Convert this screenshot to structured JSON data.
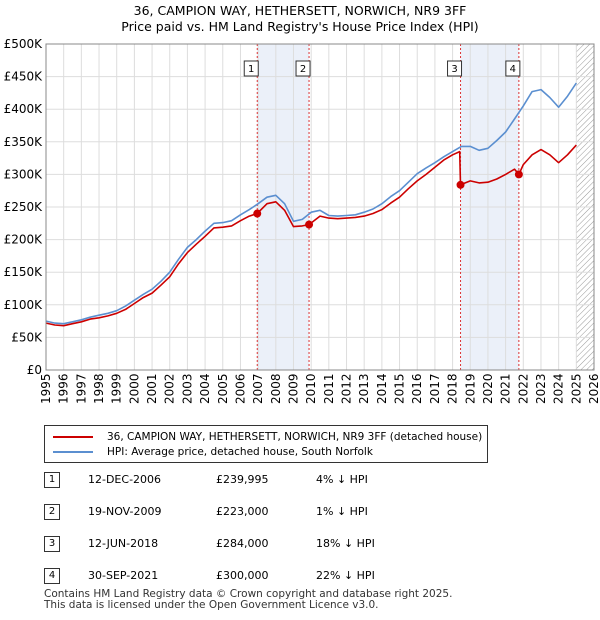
{
  "title_line1": "36, CAMPION WAY, HETHERSETT, NORWICH, NR9 3FF",
  "title_line2": "Price paid vs. HM Land Registry's House Price Index (HPI)",
  "legend": {
    "property": "36, CAMPION WAY, HETHERSETT, NORWICH, NR9 3FF (detached house)",
    "hpi": "HPI: Average price, detached house, South Norfolk"
  },
  "colors": {
    "property": "#cc0000",
    "hpi": "#5b8fd0",
    "shade": "#dde6f5",
    "grid": "#dddddd",
    "marker_line": "#dd3333"
  },
  "sales": [
    {
      "num": "1",
      "date": "12-DEC-2006",
      "price": "£239,995",
      "pct": "4% ↓ HPI"
    },
    {
      "num": "2",
      "date": "19-NOV-2009",
      "price": "£223,000",
      "pct": "1% ↓ HPI"
    },
    {
      "num": "3",
      "date": "12-JUN-2018",
      "price": "£284,000",
      "pct": "18% ↓ HPI"
    },
    {
      "num": "4",
      "date": "30-SEP-2021",
      "price": "£300,000",
      "pct": "22% ↓ HPI"
    }
  ],
  "footer_line1": "Contains HM Land Registry data © Crown copyright and database right 2025.",
  "footer_line2": "This data is licensed under the Open Government Licence v3.0.",
  "chart_data": {
    "type": "line",
    "title": "36, CAMPION WAY, HETHERSETT, NORWICH, NR9 3FF",
    "subtitle": "Price paid vs. HM Land Registry's House Price Index (HPI)",
    "xlabel": "",
    "ylabel": "",
    "xlim": [
      1995,
      2026
    ],
    "ylim": [
      0,
      500000
    ],
    "x_ticks": [
      1995,
      1996,
      1997,
      1998,
      1999,
      2000,
      2001,
      2002,
      2003,
      2004,
      2005,
      2006,
      2007,
      2008,
      2009,
      2010,
      2011,
      2012,
      2013,
      2014,
      2015,
      2016,
      2017,
      2018,
      2019,
      2020,
      2021,
      2022,
      2023,
      2024,
      2025,
      2026
    ],
    "y_ticks": [
      0,
      50000,
      100000,
      150000,
      200000,
      250000,
      300000,
      350000,
      400000,
      450000,
      500000
    ],
    "y_tick_labels": [
      "£0",
      "£50K",
      "£100K",
      "£150K",
      "£200K",
      "£250K",
      "£300K",
      "£350K",
      "£400K",
      "£450K",
      "£500K"
    ],
    "grid": true,
    "legend_position": "below",
    "shaded_periods": [
      [
        2006.95,
        2009.88
      ],
      [
        2018.45,
        2021.75
      ]
    ],
    "future_hatch_from": 2025.0,
    "series": [
      {
        "name": "HPI: Average price, detached house, South Norfolk",
        "x": [
          1995.0,
          1995.5,
          1996.0,
          1996.5,
          1997.0,
          1997.5,
          1998.0,
          1998.5,
          1999.0,
          1999.5,
          2000.0,
          2000.5,
          2001.0,
          2001.5,
          2002.0,
          2002.5,
          2003.0,
          2003.5,
          2004.0,
          2004.5,
          2005.0,
          2005.5,
          2006.0,
          2006.5,
          2007.0,
          2007.5,
          2008.0,
          2008.5,
          2009.0,
          2009.5,
          2010.0,
          2010.5,
          2011.0,
          2011.5,
          2012.0,
          2012.5,
          2013.0,
          2013.5,
          2014.0,
          2014.5,
          2015.0,
          2015.5,
          2016.0,
          2016.5,
          2017.0,
          2017.5,
          2018.0,
          2018.5,
          2019.0,
          2019.5,
          2020.0,
          2020.5,
          2021.0,
          2021.5,
          2022.0,
          2022.5,
          2023.0,
          2023.5,
          2024.0,
          2024.5,
          2025.0
        ],
        "values": [
          75000,
          72000,
          71000,
          74000,
          77000,
          81000,
          84000,
          87000,
          91000,
          98000,
          107000,
          116000,
          124000,
          136000,
          150000,
          170000,
          188000,
          200000,
          213000,
          225000,
          226000,
          229000,
          238000,
          246000,
          255000,
          265000,
          268000,
          255000,
          228000,
          231000,
          242000,
          245000,
          237000,
          236000,
          237000,
          238000,
          242000,
          247000,
          255000,
          266000,
          275000,
          288000,
          301000,
          310000,
          318000,
          327000,
          335000,
          343000,
          343000,
          337000,
          340000,
          352000,
          365000,
          385000,
          405000,
          427000,
          430000,
          418000,
          403000,
          420000,
          440000
        ]
      },
      {
        "name": "36, CAMPION WAY, HETHERSETT, NORWICH, NR9 3FF (detached house)",
        "x": [
          1995.0,
          1995.5,
          1996.0,
          1996.5,
          1997.0,
          1997.5,
          1998.0,
          1998.5,
          1999.0,
          1999.5,
          2000.0,
          2000.5,
          2001.0,
          2001.5,
          2002.0,
          2002.5,
          2003.0,
          2003.5,
          2004.0,
          2004.5,
          2005.0,
          2005.5,
          2006.0,
          2006.5,
          2006.95,
          2007.5,
          2008.0,
          2008.5,
          2009.0,
          2009.5,
          2009.88,
          2010.5,
          2011.0,
          2011.5,
          2012.0,
          2012.5,
          2013.0,
          2013.5,
          2014.0,
          2014.5,
          2015.0,
          2015.5,
          2016.0,
          2016.5,
          2017.0,
          2017.5,
          2018.0,
          2018.4,
          2018.45,
          2019.0,
          2019.5,
          2020.0,
          2020.5,
          2021.0,
          2021.5,
          2021.75,
          2022.0,
          2022.5,
          2023.0,
          2023.5,
          2024.0,
          2024.5,
          2025.0
        ],
        "values": [
          72000,
          69000,
          68000,
          71000,
          74000,
          78000,
          80000,
          83000,
          87000,
          93000,
          102000,
          111000,
          118000,
          130000,
          143000,
          163000,
          180000,
          193000,
          205000,
          218000,
          219000,
          221000,
          229000,
          236000,
          239995,
          255000,
          258000,
          245000,
          220000,
          221000,
          223000,
          236000,
          233000,
          232000,
          233000,
          234000,
          236000,
          240000,
          246000,
          256000,
          265000,
          278000,
          290000,
          300000,
          311000,
          322000,
          330000,
          335000,
          284000,
          290000,
          287000,
          288000,
          293000,
          300000,
          308000,
          300000,
          315000,
          330000,
          338000,
          330000,
          318000,
          330000,
          345000
        ]
      }
    ],
    "sale_markers": [
      {
        "label": "1",
        "x": 2006.95,
        "value": 239995
      },
      {
        "label": "2",
        "x": 2009.88,
        "value": 223000
      },
      {
        "label": "3",
        "x": 2018.45,
        "value": 284000
      },
      {
        "label": "4",
        "x": 2021.75,
        "value": 300000
      }
    ]
  }
}
